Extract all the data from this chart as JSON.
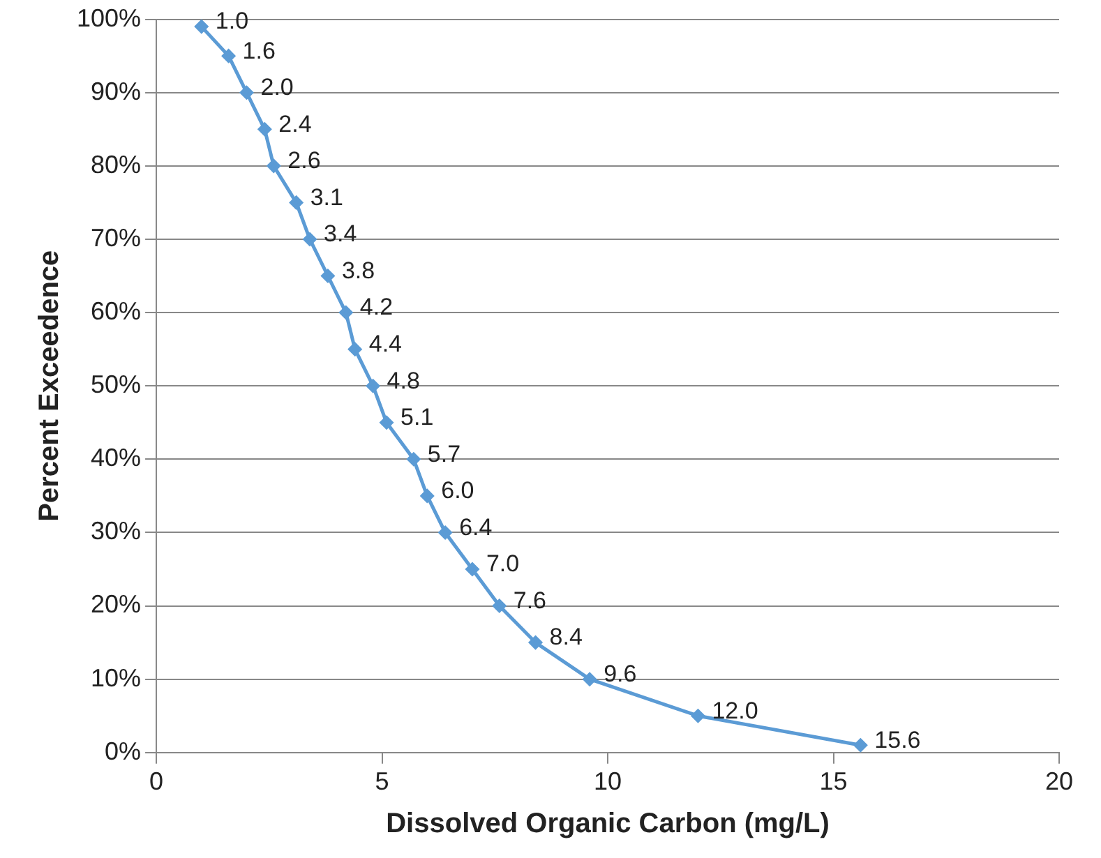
{
  "chart_data": {
    "type": "line",
    "xlabel": "Dissolved Organic Carbon (mg/L)",
    "ylabel": "Percent Exceedence",
    "x": [
      1.0,
      1.6,
      2.0,
      2.4,
      2.6,
      3.1,
      3.4,
      3.8,
      4.2,
      4.4,
      4.8,
      5.1,
      5.7,
      6.0,
      6.4,
      7.0,
      7.6,
      8.4,
      9.6,
      12.0,
      15.6
    ],
    "values": [
      99,
      95,
      90,
      85,
      80,
      75,
      70,
      65,
      60,
      55,
      50,
      45,
      40,
      35,
      30,
      25,
      20,
      15,
      10,
      5,
      1
    ],
    "annotations": [
      {
        "text": "1.0",
        "x": 1.0,
        "y": 99
      },
      {
        "text": "1.6",
        "x": 1.6,
        "y": 95
      },
      {
        "text": "2.0",
        "x": 2.0,
        "y": 90
      },
      {
        "text": "2.4",
        "x": 2.4,
        "y": 85
      },
      {
        "text": "2.6",
        "x": 2.6,
        "y": 80
      },
      {
        "text": "3.1",
        "x": 3.1,
        "y": 75
      },
      {
        "text": "3.4",
        "x": 3.4,
        "y": 70
      },
      {
        "text": "3.8",
        "x": 3.8,
        "y": 65
      },
      {
        "text": "4.2",
        "x": 4.2,
        "y": 60
      },
      {
        "text": "4.4",
        "x": 4.4,
        "y": 55
      },
      {
        "text": "4.8",
        "x": 4.8,
        "y": 50
      },
      {
        "text": "5.1",
        "x": 5.1,
        "y": 45
      },
      {
        "text": "5.7",
        "x": 5.7,
        "y": 40
      },
      {
        "text": "6.0",
        "x": 6.0,
        "y": 35
      },
      {
        "text": "6.4",
        "x": 6.4,
        "y": 30
      },
      {
        "text": "7.0",
        "x": 7.0,
        "y": 25
      },
      {
        "text": "7.6",
        "x": 7.6,
        "y": 20
      },
      {
        "text": "8.4",
        "x": 8.4,
        "y": 15
      },
      {
        "text": "9.6",
        "x": 9.6,
        "y": 10
      },
      {
        "text": "12.0",
        "x": 12.0,
        "y": 5
      },
      {
        "text": "15.6",
        "x": 15.6,
        "y": 1
      }
    ],
    "color": "#5b9bd5",
    "marker": "diamond",
    "line_style": "solid",
    "grid": "y",
    "legend": false,
    "xlim": [
      0,
      20
    ],
    "xticks": [
      0,
      5,
      10,
      15,
      20
    ],
    "ylim": [
      0,
      100
    ],
    "yticks": [
      {
        "value": 0,
        "label": "0%"
      },
      {
        "value": 10,
        "label": "10%"
      },
      {
        "value": 20,
        "label": "20%"
      },
      {
        "value": 30,
        "label": "30%"
      },
      {
        "value": 40,
        "label": "40%"
      },
      {
        "value": 50,
        "label": "50%"
      },
      {
        "value": 60,
        "label": "60%"
      },
      {
        "value": 70,
        "label": "70%"
      },
      {
        "value": 80,
        "label": "80%"
      },
      {
        "value": 90,
        "label": "90%"
      },
      {
        "value": 100,
        "label": "100%"
      }
    ]
  }
}
